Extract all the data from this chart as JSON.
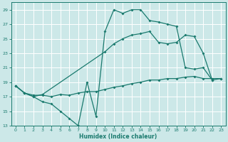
{
  "xlabel": "Humidex (Indice chaleur)",
  "bg_color": "#cce8e8",
  "line_color": "#1a7a6e",
  "grid_color": "#ffffff",
  "ylim": [
    13,
    30
  ],
  "xlim": [
    -0.5,
    23.5
  ],
  "yticks": [
    13,
    15,
    17,
    19,
    21,
    23,
    25,
    27,
    29
  ],
  "xticks": [
    0,
    1,
    2,
    3,
    4,
    5,
    6,
    7,
    8,
    9,
    10,
    11,
    12,
    13,
    14,
    15,
    16,
    17,
    18,
    19,
    20,
    21,
    22,
    23
  ],
  "line1_x": [
    0,
    1,
    2,
    3,
    4,
    5,
    6,
    7,
    8,
    9,
    10,
    11,
    12,
    13,
    14,
    15,
    16,
    17,
    18,
    19,
    20,
    21,
    22
  ],
  "line1_y": [
    18.5,
    17.5,
    17.0,
    16.3,
    16.0,
    15.0,
    14.0,
    13.0,
    19.0,
    14.3,
    26.0,
    29.0,
    28.5,
    29.0,
    29.0,
    27.5,
    27.3,
    27.0,
    26.7,
    21.0,
    20.8,
    21.0,
    19.3
  ],
  "line2_x": [
    0,
    1,
    2,
    3,
    10,
    11,
    12,
    13,
    14,
    15,
    16,
    17,
    18,
    19,
    20,
    21,
    22,
    23
  ],
  "line2_y": [
    18.5,
    17.5,
    17.0,
    17.3,
    23.2,
    24.3,
    25.0,
    25.5,
    25.7,
    26.0,
    24.5,
    24.3,
    24.5,
    25.5,
    25.3,
    23.0,
    19.3,
    19.5
  ],
  "line3_x": [
    0,
    1,
    2,
    3,
    4,
    5,
    6,
    7,
    8,
    9,
    10,
    11,
    12,
    13,
    14,
    15,
    16,
    17,
    18,
    19,
    20,
    21,
    22,
    23
  ],
  "line3_y": [
    18.5,
    17.5,
    17.2,
    17.2,
    17.0,
    17.3,
    17.2,
    17.5,
    17.7,
    17.7,
    18.0,
    18.3,
    18.5,
    18.8,
    19.0,
    19.3,
    19.3,
    19.5,
    19.5,
    19.7,
    19.8,
    19.5,
    19.5,
    19.5
  ]
}
